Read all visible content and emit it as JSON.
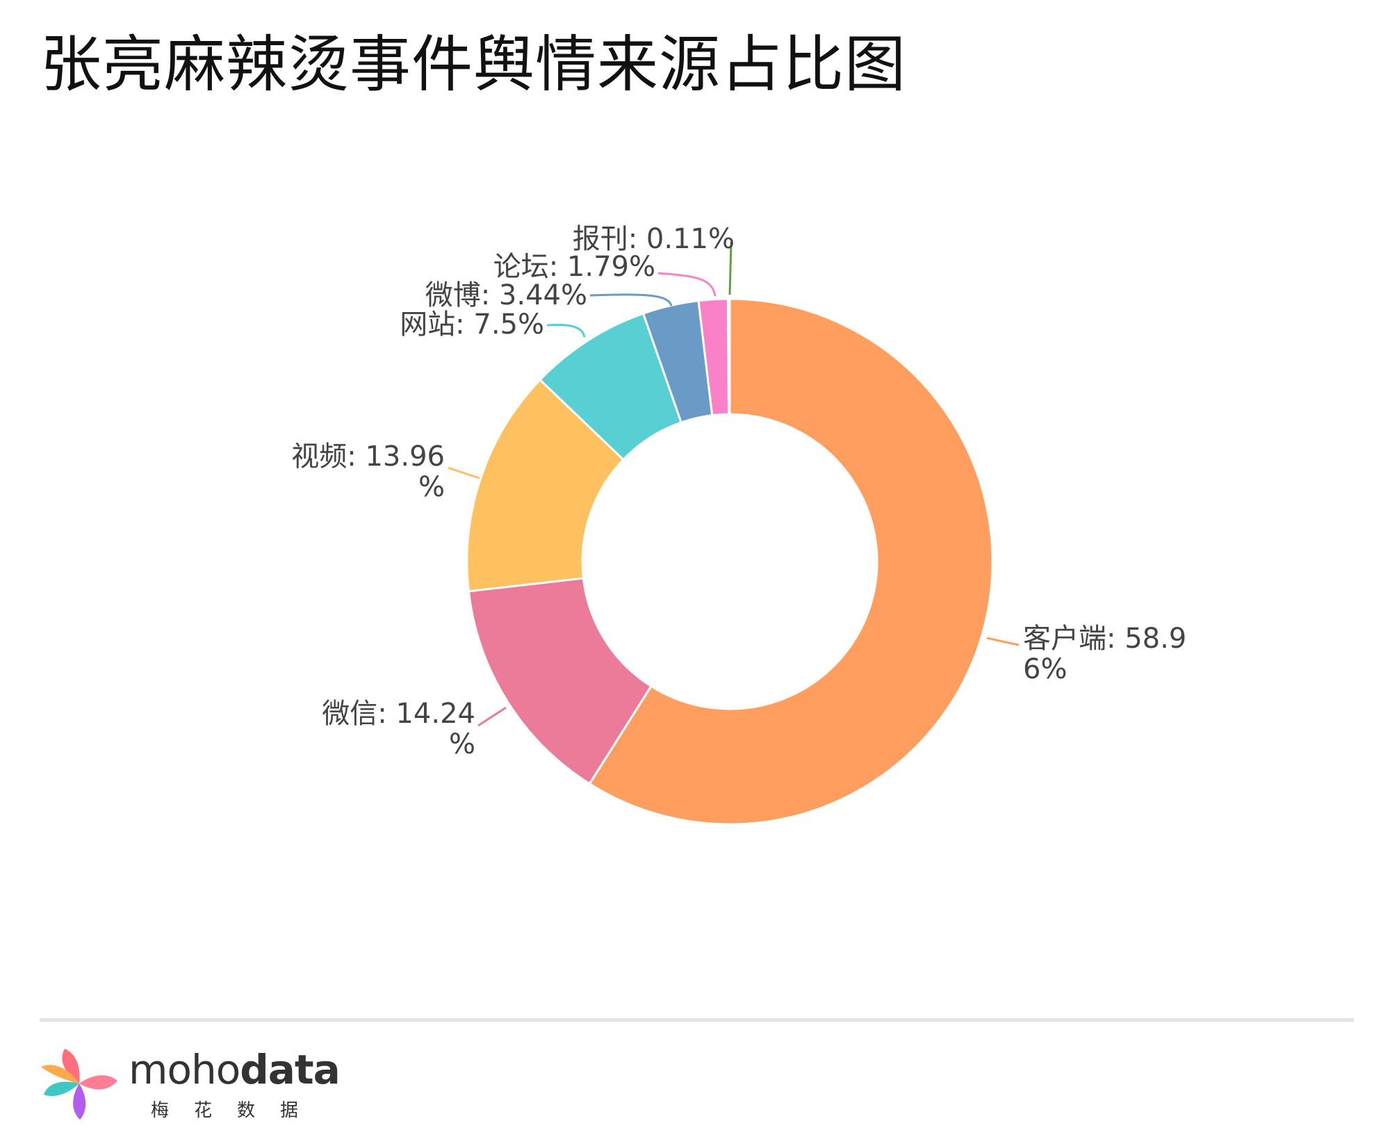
{
  "title": "张亮麻辣烫事件舆情来源占比图",
  "chart_data": {
    "type": "pie",
    "donut": true,
    "categories": [
      "客户端",
      "微信",
      "视频",
      "网站",
      "微博",
      "论坛",
      "报刊"
    ],
    "values": [
      58.96,
      14.24,
      13.96,
      7.5,
      3.44,
      1.79,
      0.11
    ],
    "unit": "%",
    "colors": [
      "#FF9E5E",
      "#EC7B99",
      "#FFC05F",
      "#58CFD3",
      "#6A9BC6",
      "#FA80C8",
      "#5FA33D"
    ],
    "labels": [
      {
        "line1": "客户端: 58.9",
        "line2": "6%"
      },
      {
        "line1": "微信: 14.24",
        "line2": "%"
      },
      {
        "line1": "视频: 13.96",
        "line2": "%"
      },
      {
        "line1": "网站: 7.5%",
        "line2": ""
      },
      {
        "line1": "微博: 3.44%",
        "line2": ""
      },
      {
        "line1": "论坛: 1.79%",
        "line2": ""
      },
      {
        "line1": "报刊: 0.11%",
        "line2": ""
      }
    ]
  },
  "footer": {
    "brand_light": "moho",
    "brand_bold": "data",
    "brand_sub": "梅花数据"
  }
}
